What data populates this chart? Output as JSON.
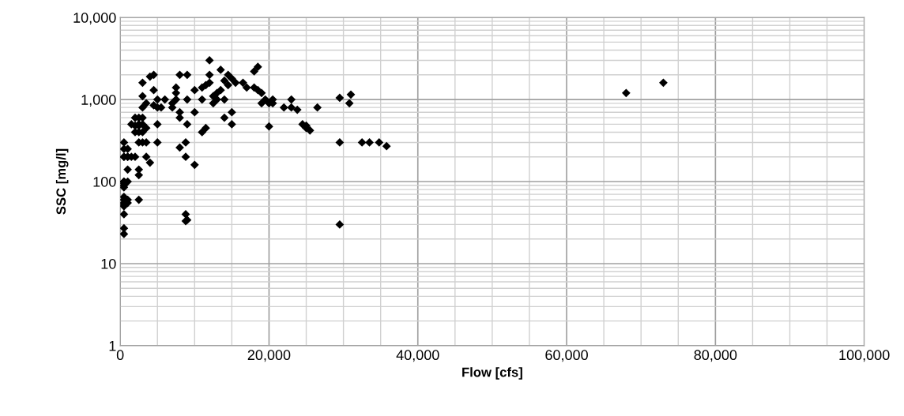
{
  "chart_data": {
    "type": "scatter",
    "xlabel": "Flow [cfs]",
    "ylabel": "SSC [mg/l]",
    "log": "y",
    "grid": true,
    "marker": "diamond",
    "xlim": [
      0,
      100000
    ],
    "xticks": [
      {
        "value": 0,
        "label": "0"
      },
      {
        "value": 20000,
        "label": "20,000"
      },
      {
        "value": 40000,
        "label": "40,000"
      },
      {
        "value": 60000,
        "label": "60,000"
      },
      {
        "value": 80000,
        "label": "80,000"
      },
      {
        "value": 100000,
        "label": "100,000"
      }
    ],
    "ylim": [
      1,
      10000
    ],
    "yticks": [
      {
        "value": 1,
        "label": "1"
      },
      {
        "value": 10,
        "label": "10"
      },
      {
        "value": 100,
        "label": "100"
      },
      {
        "value": 1000,
        "label": "1,000"
      },
      {
        "value": 10000,
        "label": "10,000"
      }
    ],
    "series": [
      {
        "color": "#000000",
        "x": [
          500,
          500,
          500,
          500,
          500,
          500,
          500,
          500,
          500,
          500,
          500,
          500,
          500,
          500,
          500,
          500,
          500,
          1000,
          1000,
          1000,
          1000,
          1000,
          1000,
          1000,
          1500,
          1500,
          2000,
          2000,
          2000,
          2000,
          2500,
          2500,
          2500,
          2500,
          2500,
          2500,
          2500,
          2500,
          3000,
          3000,
          3000,
          3000,
          3000,
          3000,
          3000,
          3500,
          3500,
          3500,
          3500,
          4000,
          4000,
          4500,
          4500,
          4500,
          5000,
          5000,
          5000,
          5000,
          5500,
          6000,
          7000,
          7000,
          7500,
          7500,
          7500,
          8000,
          8000,
          8000,
          8000,
          8800,
          8800,
          8800,
          8800,
          9000,
          9000,
          9000,
          9000,
          10000,
          10000,
          10000,
          11000,
          11000,
          11000,
          11500,
          11500,
          12000,
          12000,
          12000,
          12500,
          12500,
          13000,
          13000,
          13500,
          13500,
          14000,
          14000,
          14000,
          14500,
          14500,
          15000,
          15000,
          15000,
          15500,
          16500,
          17000,
          18000,
          18000,
          18500,
          18500,
          19000,
          19000,
          19500,
          20000,
          20000,
          20500,
          20500,
          22000,
          23000,
          23000,
          23800,
          24500,
          25000,
          25000,
          25500,
          26500,
          29500,
          29500,
          29500,
          30800,
          31000,
          32500,
          33500,
          34800,
          35800,
          68000,
          73000
        ],
        "values": [
          23,
          27,
          40,
          50,
          52,
          55,
          60,
          65,
          85,
          90,
          95,
          100,
          100,
          200,
          200,
          250,
          300,
          55,
          60,
          100,
          140,
          200,
          200,
          250,
          200,
          500,
          200,
          400,
          480,
          600,
          60,
          120,
          140,
          300,
          400,
          500,
          600,
          480,
          300,
          400,
          500,
          600,
          800,
          1100,
          1600,
          200,
          300,
          450,
          900,
          170,
          1900,
          2000,
          1300,
          850,
          300,
          500,
          800,
          1000,
          800,
          1000,
          900,
          800,
          1200,
          1000,
          1400,
          600,
          260,
          2000,
          700,
          200,
          300,
          33,
          40,
          2000,
          1000,
          500,
          34,
          160,
          700,
          1300,
          1400,
          400,
          1000,
          450,
          1500,
          3000,
          1600,
          2000,
          900,
          1100,
          1200,
          1000,
          2300,
          1300,
          600,
          1000,
          1700,
          2000,
          1500,
          500,
          1800,
          700,
          1600,
          1600,
          1400,
          2200,
          1400,
          2500,
          1300,
          1200,
          900,
          1000,
          470,
          900,
          1000,
          900,
          800,
          1000,
          800,
          750,
          500,
          480,
          450,
          420,
          800,
          1050,
          300,
          30,
          900,
          1150,
          300,
          300,
          300,
          270,
          1200,
          1600
        ]
      }
    ]
  }
}
